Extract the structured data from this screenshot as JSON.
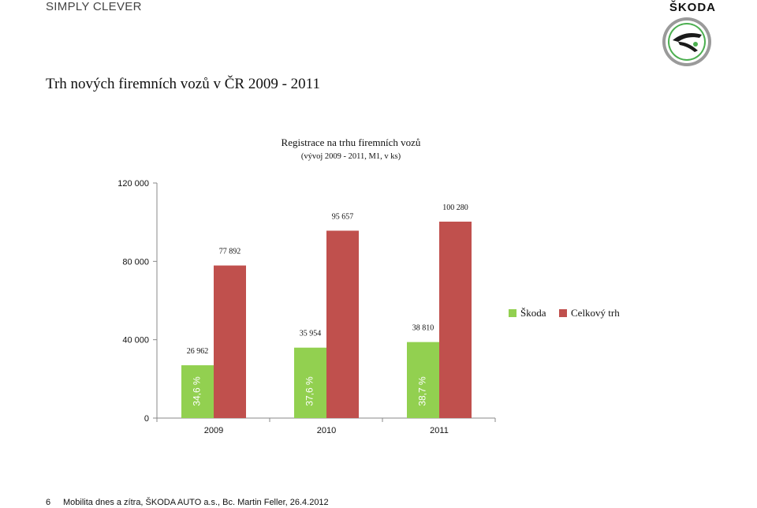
{
  "header": {
    "tagline": "SIMPLY CLEVER",
    "brand": "ŠKODA",
    "slide_title": "Trh nových firemních vozů v ČR 2009 - 2011"
  },
  "colors": {
    "skoda": "#92d050",
    "total": "#c0504d"
  },
  "chart_data": {
    "type": "bar",
    "title": "Registrace na trhu firemních vozů",
    "subtitle": "(vývoj 2009 - 2011, M1, v ks)",
    "categories": [
      "2009",
      "2010",
      "2011"
    ],
    "series": [
      {
        "name": "Škoda",
        "values": [
          26962,
          35954,
          38810
        ],
        "labels": [
          "26 962",
          "35 954",
          "38 810"
        ]
      },
      {
        "name": "Celkový trh",
        "values": [
          77892,
          95657,
          100280
        ],
        "labels": [
          "77 892",
          "95 657",
          "100 280"
        ]
      }
    ],
    "share_labels": [
      "34,6 %",
      "37,6 %",
      "38,7 %"
    ],
    "ylim": [
      0,
      120000
    ],
    "yticks": [
      0,
      40000,
      80000,
      120000
    ],
    "ytick_labels": [
      "0",
      "40 000",
      "80 000",
      "120 000"
    ],
    "grid": false,
    "legend": "right"
  },
  "footer": {
    "page_number": "6",
    "text": "Mobilita dnes a zítra, ŠKODA AUTO a.s., Bc. Martin Feller, 26.4.2012"
  }
}
